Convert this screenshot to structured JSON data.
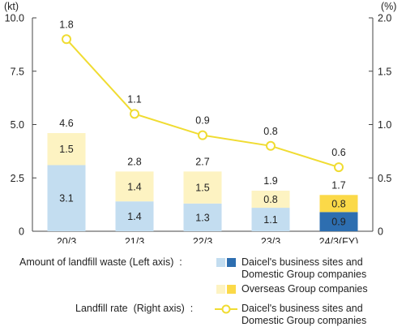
{
  "chart_data": {
    "type": "bar",
    "left_unit": "(kt)",
    "right_unit": "(%)",
    "categories": [
      "20/3",
      "21/3",
      "22/3",
      "23/3",
      "24/3(FY)"
    ],
    "ylim_left": [
      0,
      10.0
    ],
    "yticks_left": [
      "0",
      "2.5",
      "5.0",
      "7.5",
      "10.0"
    ],
    "ylim_right": [
      0,
      2.0
    ],
    "yticks_right": [
      "0",
      "0.5",
      "1.0",
      "1.5",
      "2.0"
    ],
    "bar_series": [
      {
        "name": "Daicel's business sites and Domestic Group companies",
        "values": [
          3.1,
          1.4,
          1.3,
          1.1,
          0.9
        ],
        "labels": [
          "3.1",
          "1.4",
          "1.3",
          "1.1",
          "0.9"
        ]
      },
      {
        "name": "Overseas Group companies",
        "values": [
          1.5,
          1.4,
          1.5,
          0.8,
          0.8
        ],
        "labels": [
          "1.5",
          "1.4",
          "1.5",
          "0.8",
          "0.8"
        ]
      }
    ],
    "totals": [
      "4.6",
      "2.8",
      "2.7",
      "1.9",
      "1.7"
    ],
    "line_series": {
      "name": "Daicel's business sites and Domestic Group companies",
      "axis": "right",
      "values": [
        1.8,
        1.1,
        0.9,
        0.8,
        0.6
      ],
      "labels": [
        "1.8",
        "1.1",
        "0.9",
        "0.8",
        "0.6"
      ]
    },
    "grid": false
  },
  "legend": {
    "waste_title": "Amount of landfill waste (Left axis)  :",
    "waste_domestic": "Daicel's business sites and",
    "waste_domestic_2": "Domestic Group companies",
    "waste_overseas": "Overseas Group companies",
    "rate_title": "Landfill rate  (Right axis)  :",
    "rate_domestic": "Daicel's business sites and",
    "rate_domestic_2": "Domestic Group companies"
  },
  "colors": {
    "domestic_past": "#c3ddf0",
    "domestic_latest": "#2d6eb0",
    "overseas_past": "#fdf3c2",
    "overseas_latest": "#fbd948",
    "line": "#f0dc32",
    "marker_fill": "#ffffff",
    "axis": "#444444"
  }
}
